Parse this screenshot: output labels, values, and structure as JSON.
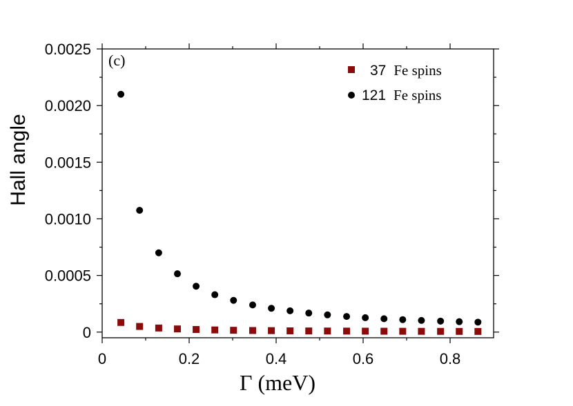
{
  "chart_data": {
    "type": "scatter",
    "panel_label": "(c)",
    "xlabel": "Γ (meV)",
    "ylabel": "Hall angle",
    "xlim": [
      0,
      0.9
    ],
    "ylim": [
      -5e-05,
      0.0025
    ],
    "xticks": [
      0,
      0.2,
      0.4,
      0.6,
      0.8
    ],
    "xtick_labels": [
      "0",
      "0.2",
      "0.4",
      "0.6",
      "0.8"
    ],
    "yticks": [
      0,
      0.0005,
      0.001,
      0.0015,
      0.002,
      0.0025
    ],
    "ytick_labels": [
      "0",
      "0.0005",
      "0.0010",
      "0.0015",
      "0.0020",
      "0.0025"
    ],
    "legend_position": "top-right",
    "series": [
      {
        "name": "37 Fe spins",
        "legend_number": "37",
        "legend_text": "Fe spins",
        "marker": "square",
        "color": "#8b0a0a",
        "x": [
          0.043,
          0.086,
          0.13,
          0.173,
          0.216,
          0.259,
          0.302,
          0.346,
          0.389,
          0.432,
          0.475,
          0.518,
          0.562,
          0.605,
          0.648,
          0.691,
          0.734,
          0.778,
          0.821,
          0.864
        ],
        "y": [
          8.5e-05,
          5e-05,
          3.6e-05,
          2.8e-05,
          2.3e-05,
          1.9e-05,
          1.6e-05,
          1.4e-05,
          1.3e-05,
          1.1e-05,
          1e-05,
          9.5e-06,
          8.8e-06,
          8.2e-06,
          7.6e-06,
          7.1e-06,
          6.7e-06,
          6.3e-06,
          6e-06,
          5.7e-06
        ]
      },
      {
        "name": "121 Fe spins",
        "legend_number": "121",
        "legend_text": "Fe spins",
        "marker": "circle",
        "color": "#000000",
        "x": [
          0.043,
          0.086,
          0.13,
          0.173,
          0.216,
          0.259,
          0.302,
          0.346,
          0.389,
          0.432,
          0.475,
          0.518,
          0.562,
          0.605,
          0.648,
          0.691,
          0.734,
          0.778,
          0.821,
          0.864
        ],
        "y": [
          0.0021,
          0.001075,
          0.0007,
          0.000515,
          0.000405,
          0.00033,
          0.00028,
          0.00024,
          0.00021,
          0.000188,
          0.000168,
          0.000152,
          0.000138,
          0.000127,
          0.000118,
          0.00011,
          0.000103,
          9.7e-05,
          9.2e-05,
          8.8e-05
        ]
      }
    ]
  }
}
